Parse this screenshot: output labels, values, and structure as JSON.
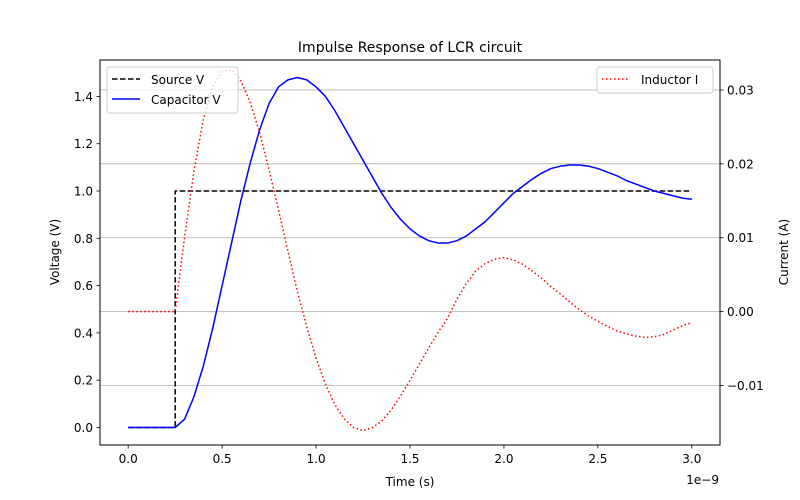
{
  "chart_data": {
    "type": "line",
    "title": "Impulse Response of LCR circuit",
    "xlabel": "Time (s)",
    "ylabel": "Voltage (V)",
    "y2label": "Current (A)",
    "x_offset_text": "1e−9",
    "xlim": [
      -0.15,
      3.15
    ],
    "ylim": [
      -0.074,
      1.554
    ],
    "y2lim": [
      -0.01805,
      0.03405
    ],
    "xticks": [
      0.0,
      0.5,
      1.0,
      1.5,
      2.0,
      2.5,
      3.0
    ],
    "xtick_labels": [
      "0.0",
      "0.5",
      "1.0",
      "1.5",
      "2.0",
      "2.5",
      "3.0"
    ],
    "yticks": [
      0.0,
      0.2,
      0.4,
      0.6,
      0.8,
      1.0,
      1.2,
      1.4
    ],
    "ytick_labels": [
      "0.0",
      "0.2",
      "0.4",
      "0.6",
      "0.8",
      "1.0",
      "1.2",
      "1.4"
    ],
    "y2ticks": [
      -0.01,
      0.0,
      0.01,
      0.02,
      0.03
    ],
    "y2tick_labels": [
      "−0.01",
      "0.00",
      "0.01",
      "0.02",
      "0.03"
    ],
    "grid": "right-axis horizontal",
    "series": [
      {
        "name": "Source V",
        "axis": "left",
        "color": "#000000",
        "style": "dashed",
        "x": [
          0.0,
          0.25,
          0.25,
          3.0
        ],
        "y": [
          0.0,
          0.0,
          1.0,
          1.0
        ]
      },
      {
        "name": "Capacitor V",
        "axis": "left",
        "color": "#0000ff",
        "style": "solid",
        "x": [
          0.0,
          0.25,
          0.3,
          0.35,
          0.4,
          0.45,
          0.5,
          0.55,
          0.6,
          0.65,
          0.7,
          0.75,
          0.8,
          0.85,
          0.9,
          0.95,
          1.0,
          1.05,
          1.1,
          1.15,
          1.2,
          1.25,
          1.3,
          1.35,
          1.4,
          1.45,
          1.5,
          1.55,
          1.6,
          1.65,
          1.7,
          1.75,
          1.8,
          1.85,
          1.9,
          1.95,
          2.0,
          2.05,
          2.1,
          2.15,
          2.2,
          2.25,
          2.3,
          2.35,
          2.4,
          2.45,
          2.5,
          2.55,
          2.6,
          2.65,
          2.7,
          2.75,
          2.8,
          2.85,
          2.9,
          2.95,
          3.0
        ],
        "y": [
          0.0,
          0.0,
          0.035,
          0.13,
          0.26,
          0.42,
          0.6,
          0.78,
          0.96,
          1.12,
          1.26,
          1.37,
          1.44,
          1.47,
          1.48,
          1.47,
          1.44,
          1.4,
          1.34,
          1.27,
          1.2,
          1.13,
          1.06,
          0.99,
          0.93,
          0.88,
          0.84,
          0.81,
          0.79,
          0.78,
          0.78,
          0.79,
          0.81,
          0.84,
          0.87,
          0.91,
          0.95,
          0.99,
          1.02,
          1.05,
          1.075,
          1.095,
          1.105,
          1.11,
          1.11,
          1.105,
          1.095,
          1.08,
          1.065,
          1.045,
          1.03,
          1.015,
          1.0,
          0.99,
          0.98,
          0.97,
          0.965
        ]
      },
      {
        "name": "Inductor I",
        "axis": "right",
        "color": "#ff0000",
        "style": "dotted",
        "x": [
          0.0,
          0.25,
          0.3,
          0.35,
          0.4,
          0.45,
          0.5,
          0.55,
          0.6,
          0.65,
          0.7,
          0.75,
          0.8,
          0.85,
          0.9,
          0.95,
          1.0,
          1.05,
          1.1,
          1.15,
          1.2,
          1.25,
          1.3,
          1.35,
          1.4,
          1.45,
          1.5,
          1.55,
          1.6,
          1.65,
          1.7,
          1.75,
          1.8,
          1.85,
          1.9,
          1.95,
          2.0,
          2.05,
          2.1,
          2.15,
          2.2,
          2.25,
          2.3,
          2.35,
          2.4,
          2.45,
          2.5,
          2.55,
          2.6,
          2.65,
          2.7,
          2.75,
          2.8,
          2.85,
          2.9,
          2.95,
          3.0
        ],
        "y": [
          0.0,
          0.0,
          0.01,
          0.019,
          0.026,
          0.0305,
          0.0325,
          0.0327,
          0.0312,
          0.0283,
          0.0242,
          0.0192,
          0.0138,
          0.0082,
          0.0028,
          -0.002,
          -0.0063,
          -0.0098,
          -0.0126,
          -0.0145,
          -0.0157,
          -0.0161,
          -0.0157,
          -0.0148,
          -0.0133,
          -0.0114,
          -0.0093,
          -0.0071,
          -0.0049,
          -0.0028,
          -0.0009,
          0.0017,
          0.0038,
          0.0055,
          0.0065,
          0.0071,
          0.0073,
          0.007,
          0.0064,
          0.0055,
          0.0045,
          0.0034,
          0.0024,
          0.0013,
          0.0003,
          -0.0006,
          -0.0013,
          -0.002,
          -0.0026,
          -0.003,
          -0.0033,
          -0.0035,
          -0.0034,
          -0.0031,
          -0.0025,
          -0.0019,
          -0.0015
        ]
      }
    ],
    "legend_left": {
      "position": "upper-left",
      "entries": [
        "Source V",
        "Capacitor V"
      ]
    },
    "legend_right": {
      "position": "upper-right",
      "entries": [
        "Inductor I"
      ]
    }
  }
}
